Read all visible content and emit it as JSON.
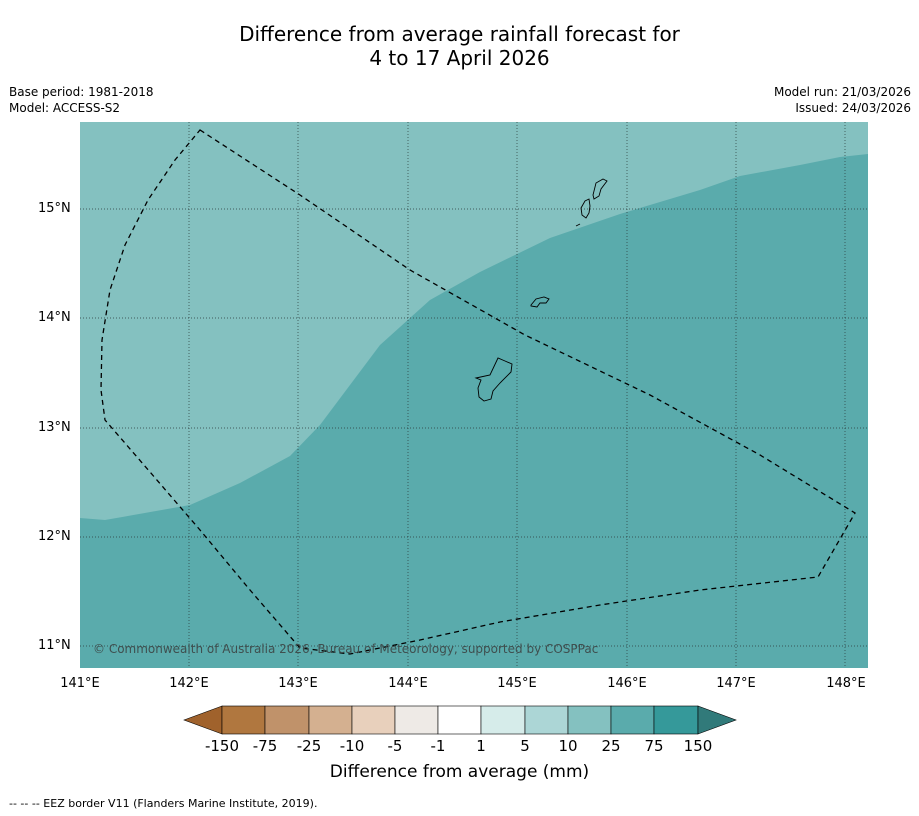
{
  "title_line1": "Difference from average rainfall forecast for",
  "title_line2": "4 to 17 April 2026",
  "base_period": "Base period: 1981-2018",
  "model": "Model: ACCESS-S2",
  "model_run": "Model run: 21/03/2026",
  "issued": "Issued: 24/03/2026",
  "copyright": "© Commonwealth of Australia 2026, Bureau of Meteorology, supported by COSPPac",
  "lat_ticks": [
    "15°N",
    "14°N",
    "13°N",
    "12°N",
    "11°N"
  ],
  "lon_ticks": [
    "141°E",
    "142°E",
    "143°E",
    "144°E",
    "145°E",
    "146°E",
    "147°E",
    "148°E"
  ],
  "colorbar": {
    "title": "Difference from average (mm)",
    "labels": [
      "-150",
      "-75",
      "-25",
      "-10",
      "-5",
      "-1",
      "1",
      "5",
      "10",
      "25",
      "75",
      "150"
    ],
    "colors": [
      "#a0622c",
      "#b0773f",
      "#c0926a",
      "#d4b090",
      "#e8d0bc",
      "#eeeae6",
      "#ffffff",
      "#d6ecea",
      "#acd6d6",
      "#84c1c0",
      "#5aabac",
      "#35999a",
      "#317a7a"
    ]
  },
  "map": {
    "fill_light": "#84c1c0",
    "fill_dark": "#5aabac",
    "features": [
      "Guam",
      "Rota",
      "Tinian",
      "Saipan"
    ]
  },
  "footer": "--  --  -- EEZ border V11 (Flanders Marine Institute, 2019)."
}
